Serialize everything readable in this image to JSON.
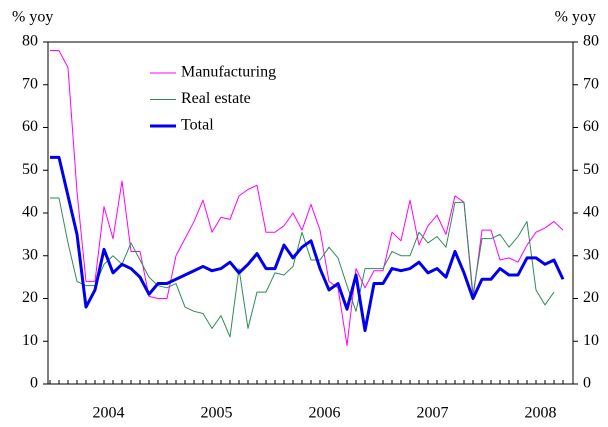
{
  "chart_data": {
    "type": "line",
    "ylabel": "% yoy",
    "y2label": "% yoy",
    "categories": [
      null,
      null,
      null,
      null,
      null,
      null,
      null,
      "2004",
      null,
      null,
      null,
      null,
      null,
      null,
      null,
      null,
      null,
      null,
      null,
      "2005",
      null,
      null,
      null,
      null,
      null,
      null,
      null,
      null,
      null,
      null,
      null,
      "2006",
      null,
      null,
      null,
      null,
      null,
      null,
      null,
      null,
      null,
      null,
      null,
      "2007",
      null,
      null,
      null,
      null,
      null,
      null,
      null,
      null,
      null,
      null,
      null,
      "2008",
      null,
      null
    ],
    "series": [
      {
        "name": "Manufacturing",
        "color": "#ff00ff",
        "width": 1,
        "values": [
          78,
          78,
          74,
          45,
          24,
          24,
          41.5,
          34,
          47.5,
          31,
          31,
          20.5,
          20,
          20,
          30,
          34,
          38,
          43,
          35.5,
          39,
          38.5,
          44,
          45.5,
          46.5,
          35.5,
          35.5,
          37,
          40,
          36,
          42,
          36,
          24,
          22.5,
          9,
          27,
          22.5,
          26.5,
          26.5,
          35.5,
          33.5,
          43,
          32.5,
          37,
          39.5,
          35,
          44,
          42.5,
          20,
          36,
          36,
          29,
          29.5,
          28.5,
          32.5,
          35.5,
          36.5,
          38,
          36
        ]
      },
      {
        "name": "Real estate",
        "color": "#2e8b57",
        "width": 1,
        "values": [
          43.5,
          43.5,
          33,
          24,
          23,
          23,
          28,
          30,
          28,
          33,
          29,
          25,
          23,
          22.5,
          23.5,
          18,
          17,
          16.5,
          13,
          16,
          11,
          27,
          13,
          21.5,
          21.5,
          26,
          25.5,
          27.5,
          35.5,
          29,
          29,
          32,
          29.5,
          23,
          17,
          27,
          27,
          27,
          31,
          30,
          30,
          35.5,
          33,
          34.5,
          32,
          42.5,
          42.5,
          21,
          34,
          34,
          35,
          32,
          34.5,
          38,
          22,
          18.5,
          21.5,
          null
        ]
      },
      {
        "name": "Total",
        "color": "#0000ee",
        "width": 3,
        "values": [
          53,
          53,
          44,
          35,
          18,
          22,
          31.5,
          26,
          28,
          27,
          25,
          21,
          23.5,
          23.5,
          24.5,
          25.5,
          26.5,
          27.5,
          26.5,
          27,
          28.5,
          26,
          28,
          30.5,
          27,
          27,
          32.5,
          29.5,
          32,
          33.5,
          27,
          22,
          23.5,
          17.5,
          25.5,
          12.5,
          23.5,
          23.5,
          27,
          26.5,
          27,
          28.5,
          26,
          27,
          25,
          31,
          26,
          20,
          24.5,
          24.5,
          27,
          25.5,
          25.5,
          29.5,
          29.5,
          28,
          29,
          24.5
        ]
      }
    ],
    "ylim": [
      0,
      80
    ],
    "yticks": [
      0,
      10,
      20,
      30,
      40,
      50,
      60,
      70,
      80
    ],
    "legend": "upper-center"
  }
}
